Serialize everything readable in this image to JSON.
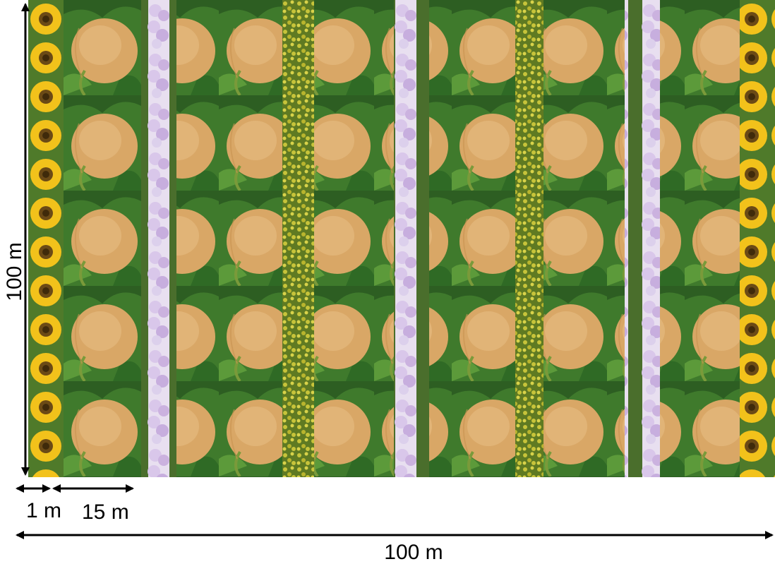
{
  "diagram": {
    "left_dimension_label": "100 m",
    "bottom_dimension_label": "100 m",
    "small_width_label_1": "1 m",
    "small_width_label_2": "15 m"
  },
  "strips": [
    {
      "crop": "sunflower"
    },
    {
      "crop": "melon"
    },
    {
      "crop": "phacelia"
    },
    {
      "crop": "melon"
    },
    {
      "crop": "rapeseed"
    },
    {
      "crop": "melon"
    },
    {
      "crop": "phacelia"
    },
    {
      "crop": "melon"
    },
    {
      "crop": "rapeseed"
    },
    {
      "crop": "melon"
    },
    {
      "crop": "phacelia"
    },
    {
      "crop": "melon"
    },
    {
      "crop": "sunflower"
    }
  ],
  "colors": {
    "melon": "#d9a766",
    "melon_leaf": "#3f7a2c",
    "sunflower_petal": "#f2c21b",
    "sunflower_center": "#6b4a16",
    "phacelia": "#d9c7ea",
    "rapeseed": "#c7c43a",
    "rapeseed_bg": "#5f7a22",
    "arrow": "#000000"
  }
}
